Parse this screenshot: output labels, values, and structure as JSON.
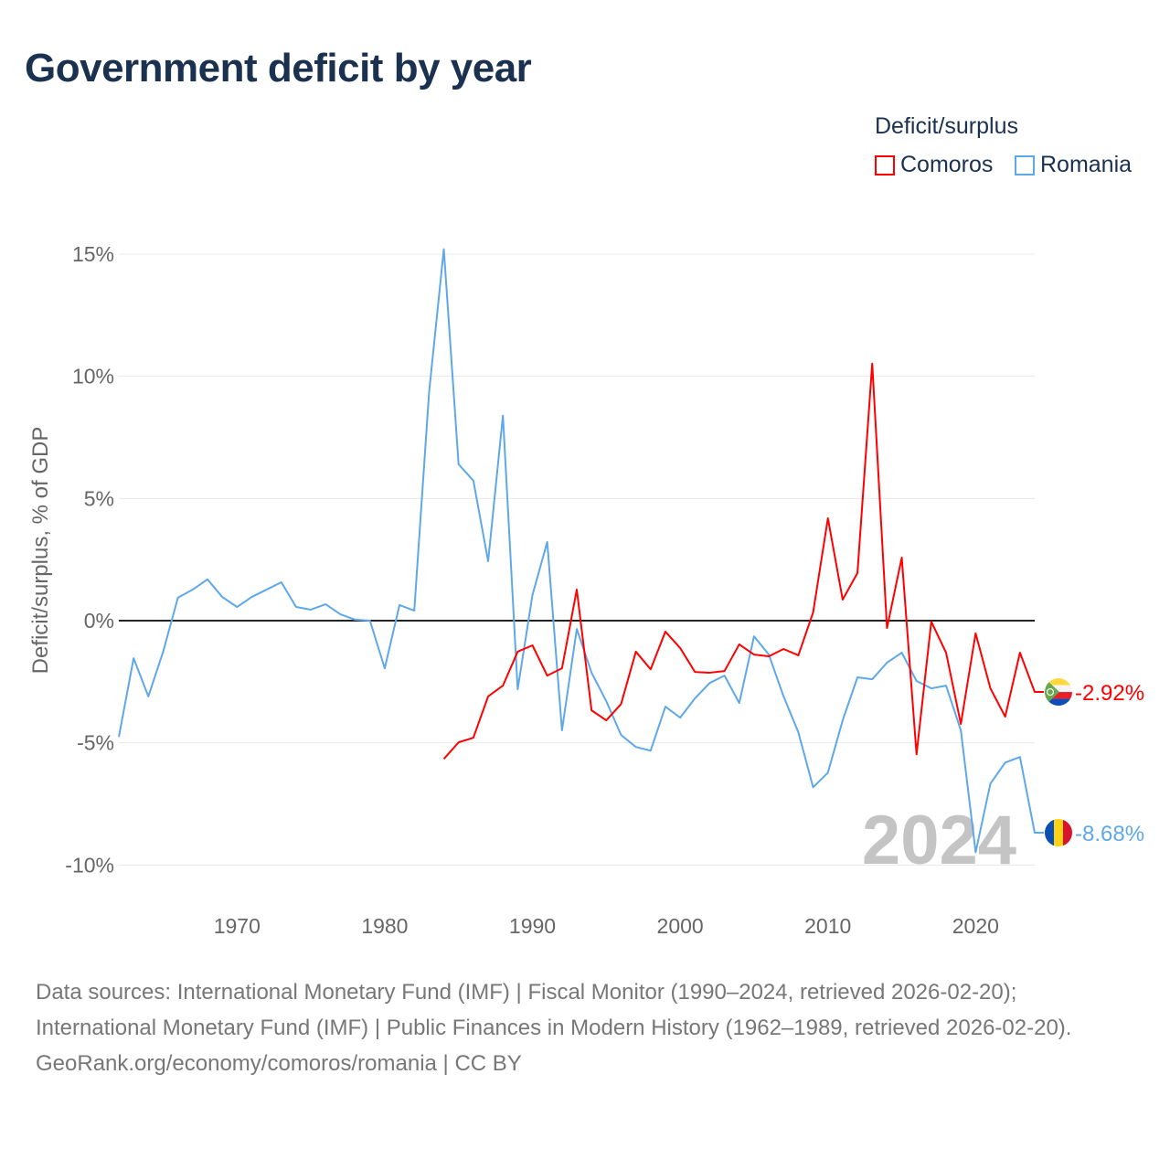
{
  "title": "Government deficit by year",
  "legend": {
    "title": "Deficit/surplus",
    "items": [
      {
        "label": "Comoros",
        "color": "#ff0000"
      },
      {
        "label": "Romania",
        "color": "#5ea8ea"
      }
    ]
  },
  "year_watermark": "2024",
  "footer": {
    "sources": "Data sources: International Monetary Fund (IMF) | Fiscal Monitor (1990–2024, retrieved 2026-02-20); International Monetary Fund (IMF) | Public Finances in Modern History (1962–1989, retrieved 2026-02-20).",
    "credit": "GeoRank.org/economy/comoros/romania | CC BY"
  },
  "chart_data": {
    "type": "line",
    "title": "Government deficit by year",
    "xlabel": "",
    "ylabel": "Deficit/surplus, % of GDP",
    "xlim": [
      1962,
      2024
    ],
    "ylim": [
      -10,
      15
    ],
    "xticks": [
      1970,
      1980,
      1990,
      2000,
      2010,
      2020
    ],
    "yticks": [
      {
        "v": 15,
        "label": "15%"
      },
      {
        "v": 10,
        "label": "10%"
      },
      {
        "v": 5,
        "label": "5%"
      },
      {
        "v": 0,
        "label": "0%"
      },
      {
        "v": -5,
        "label": "-5%"
      },
      {
        "v": -10,
        "label": "-10%"
      }
    ],
    "grid": true,
    "legend_position": "top-right",
    "series": [
      {
        "name": "Comoros",
        "color": "#ff0000",
        "end_label": "-2.92%",
        "start": 1984,
        "values": [
          -5.66,
          -4.98,
          -4.79,
          -3.1,
          -2.66,
          -1.27,
          -1.01,
          -2.25,
          -1.95,
          1.27,
          -3.67,
          -4.08,
          -3.41,
          -1.27,
          -1.99,
          -0.45,
          -1.12,
          -2.1,
          -2.13,
          -2.06,
          -0.97,
          -1.39,
          -1.46,
          -1.16,
          -1.42,
          0.34,
          4.19,
          0.86,
          1.95,
          10.52,
          -0.3,
          2.58,
          -5.47,
          -0.04,
          -1.31,
          -4.23,
          -0.52,
          -2.77,
          -3.93,
          -1.31,
          -2.92
        ]
      },
      {
        "name": "Romania",
        "color": "#5ea8ea",
        "end_label": "-8.68%",
        "start": 1962,
        "values": [
          -4.76,
          -1.54,
          -3.1,
          -1.27,
          0.94,
          1.27,
          1.69,
          0.97,
          0.56,
          0.97,
          1.27,
          1.57,
          0.56,
          0.45,
          0.67,
          0.26,
          0.04,
          0,
          -1.95,
          0.64,
          0.41,
          9.33,
          15.2,
          6.4,
          5.73,
          2.43,
          8.39,
          -2.81,
          1.05,
          3.22,
          -4.49,
          -0.34,
          -2.13,
          -3.3,
          -4.68,
          -5.17,
          -5.32,
          -3.52,
          -3.97,
          -3.18,
          -2.55,
          -2.25,
          -3.37,
          -0.64,
          -1.39,
          -3.1,
          -4.57,
          -6.82,
          -6.22,
          -4.08,
          -2.32,
          -2.4,
          -1.72,
          -1.31,
          -2.47,
          -2.77,
          -2.66,
          -4.49,
          -9.48,
          -6.67,
          -5.81,
          -5.58,
          -8.68
        ]
      }
    ]
  }
}
